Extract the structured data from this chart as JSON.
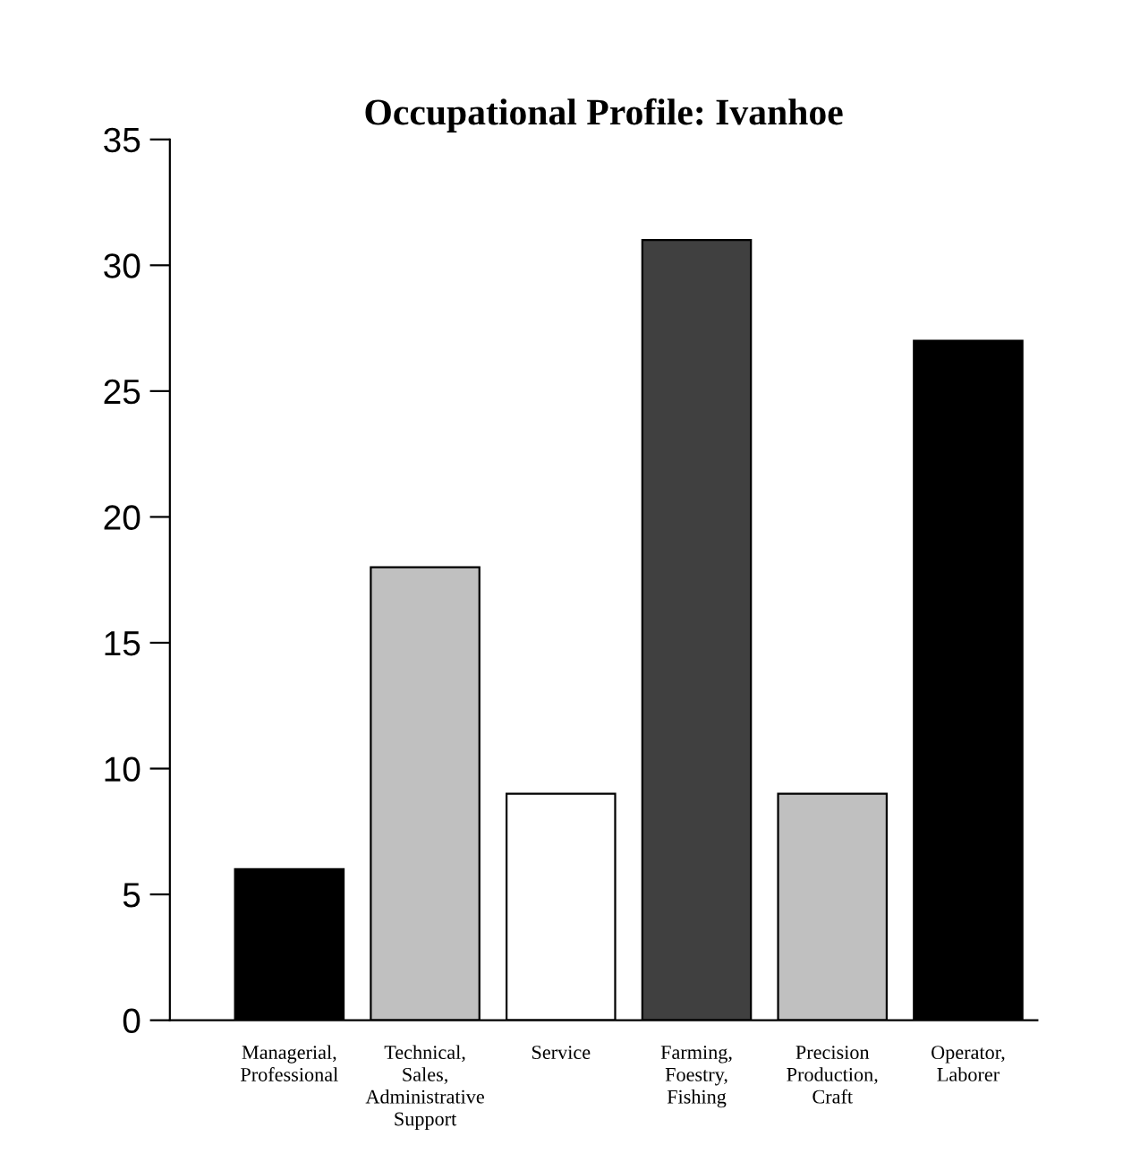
{
  "chart_data": {
    "type": "bar",
    "title": "Occupational Profile: Ivanhoe",
    "categories": [
      "Managerial,\nProfessional",
      "Technical,\nSales,\nAdministrative\nSupport",
      "Service",
      "Farming,\nFoestry,\nFishing",
      "Precision\nProduction,\nCraft",
      "Operator,\nLaborer"
    ],
    "values": [
      6,
      18,
      9,
      31,
      9,
      27
    ],
    "colors": [
      "#000000",
      "#c0c0c0",
      "#ffffff",
      "#404040",
      "#c0c0c0",
      "#000000"
    ],
    "ylim": [
      0,
      35
    ],
    "yticks": [
      0,
      5,
      10,
      15,
      20,
      25,
      30,
      35
    ],
    "grid": false
  }
}
